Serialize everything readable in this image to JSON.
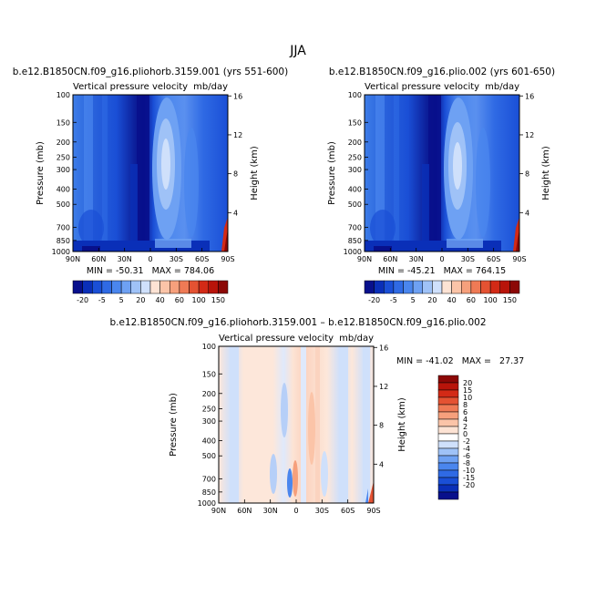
{
  "figure": {
    "title": "JJA"
  },
  "chart_data": [
    {
      "type": "heatmap",
      "name": "left-panel",
      "title": "b.e12.B1850CN.f09_g16.pliohorb.3159.001 (yrs 551-600)",
      "subtitle_left": "Vertical pressure velocity",
      "subtitle_right": "mb/day",
      "xlabel": "",
      "ylabel": "Pressure (mb)",
      "ylabel_right": "Height (km)",
      "x_ticks": [
        "90N",
        "60N",
        "30N",
        "0",
        "30S",
        "60S",
        "90S"
      ],
      "y_ticks": [
        "100",
        "150",
        "200",
        "250",
        "300",
        "400",
        "500",
        "700",
        "850",
        "1000"
      ],
      "y_right_ticks": [
        "16",
        "12",
        "8",
        "4"
      ],
      "stats": "MIN = -50.31   MAX = 784.06",
      "min": -50.31,
      "max": 784.06,
      "colorbar_labels": [
        "-20",
        "-5",
        "5",
        "20",
        "40",
        "60",
        "100",
        "150"
      ]
    },
    {
      "type": "heatmap",
      "name": "right-panel",
      "title": "b.e12.B1850CN.f09_g16.plio.002 (yrs 601-650)",
      "subtitle_left": "Vertical pressure velocity",
      "subtitle_right": "mb/day",
      "xlabel": "",
      "ylabel": "Pressure (mb)",
      "ylabel_right": "Height (km)",
      "x_ticks": [
        "90N",
        "60N",
        "30N",
        "0",
        "30S",
        "60S",
        "90S"
      ],
      "y_ticks": [
        "100",
        "150",
        "200",
        "250",
        "300",
        "400",
        "500",
        "700",
        "850",
        "1000"
      ],
      "y_right_ticks": [
        "16",
        "12",
        "8",
        "4"
      ],
      "stats": "MIN = -45.21   MAX = 764.15",
      "min": -45.21,
      "max": 764.15,
      "colorbar_labels": [
        "-20",
        "-5",
        "5",
        "20",
        "40",
        "60",
        "100",
        "150"
      ]
    },
    {
      "type": "heatmap",
      "name": "difference-panel",
      "title": "b.e12.B1850CN.f09_g16.pliohorb.3159.001 – b.e12.B1850CN.f09_g16.plio.002",
      "subtitle_left": "Vertical pressure velocity",
      "subtitle_right": "mb/day",
      "xlabel": "",
      "ylabel": "Pressure (mb)",
      "ylabel_right": "Height (km)",
      "x_ticks": [
        "90N",
        "60N",
        "30N",
        "0",
        "30S",
        "60S",
        "90S"
      ],
      "y_ticks": [
        "100",
        "150",
        "200",
        "250",
        "300",
        "400",
        "500",
        "700",
        "850",
        "1000"
      ],
      "y_right_ticks": [
        "16",
        "12",
        "8",
        "4"
      ],
      "stats": "MIN = -41.02   MAX =   27.37",
      "min": -41.02,
      "max": 27.37,
      "colorbar_labels": [
        "20",
        "15",
        "10",
        "8",
        "6",
        "4",
        "2",
        "0",
        "-2",
        "-4",
        "-6",
        "-8",
        "-10",
        "-15",
        "-20"
      ]
    }
  ],
  "colors": {
    "abs_bar": [
      "#08108c",
      "#0a2fb8",
      "#1a4fd6",
      "#2f6ae4",
      "#4a86ee",
      "#6ea1f3",
      "#9fc2f7",
      "#cfe0fb",
      "#fde3d4",
      "#fbc4a8",
      "#f6a07c",
      "#ef7a55",
      "#e45232",
      "#d32a16",
      "#b8140a",
      "#8c0806"
    ],
    "diff_bar": [
      "#8c0806",
      "#b8140a",
      "#d32a16",
      "#e45232",
      "#ef7a55",
      "#f6a07c",
      "#fbc4a8",
      "#fde3d4",
      "#ffffff",
      "#cfe0fb",
      "#9fc2f7",
      "#6ea1f3",
      "#4a86ee",
      "#2f6ae4",
      "#1a4fd6",
      "#0a2fb8",
      "#08108c"
    ]
  }
}
